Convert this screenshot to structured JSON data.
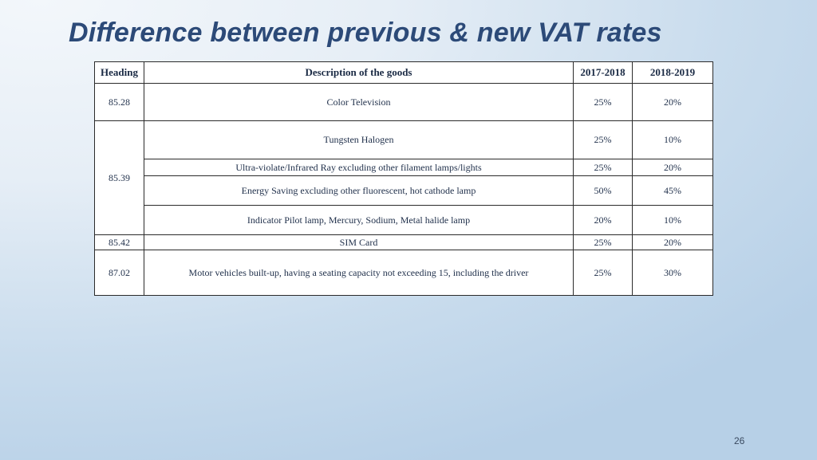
{
  "slide": {
    "title": "Difference between previous & new VAT rates",
    "page_number": "26"
  },
  "table": {
    "headers": [
      "Heading",
      "Description of the goods",
      "2017-2018",
      "2018-2019"
    ],
    "groups": [
      {
        "heading": "85.28",
        "items": [
          {
            "description": "Color Television",
            "rate_2017_2018": "25%",
            "rate_2018_2019": "20%"
          }
        ]
      },
      {
        "heading": "85.39",
        "items": [
          {
            "description": "Tungsten Halogen",
            "rate_2017_2018": "25%",
            "rate_2018_2019": "10%"
          },
          {
            "description": "Ultra-violate/Infrared Ray excluding other filament lamps/lights",
            "rate_2017_2018": "25%",
            "rate_2018_2019": "20%"
          },
          {
            "description": "Energy Saving excluding other fluorescent, hot cathode lamp",
            "rate_2017_2018": "50%",
            "rate_2018_2019": "45%"
          },
          {
            "description": "Indicator Pilot lamp, Mercury, Sodium, Metal halide lamp",
            "rate_2017_2018": "20%",
            "rate_2018_2019": "10%"
          }
        ]
      },
      {
        "heading": "85.42",
        "items": [
          {
            "description": "SIM Card",
            "rate_2017_2018": "25%",
            "rate_2018_2019": "20%"
          }
        ]
      },
      {
        "heading": "87.02",
        "items": [
          {
            "description": "Motor vehicles built-up, having a seating capacity not exceeding 15, including the driver",
            "rate_2017_2018": "25%",
            "rate_2018_2019": "30%"
          }
        ]
      }
    ]
  }
}
